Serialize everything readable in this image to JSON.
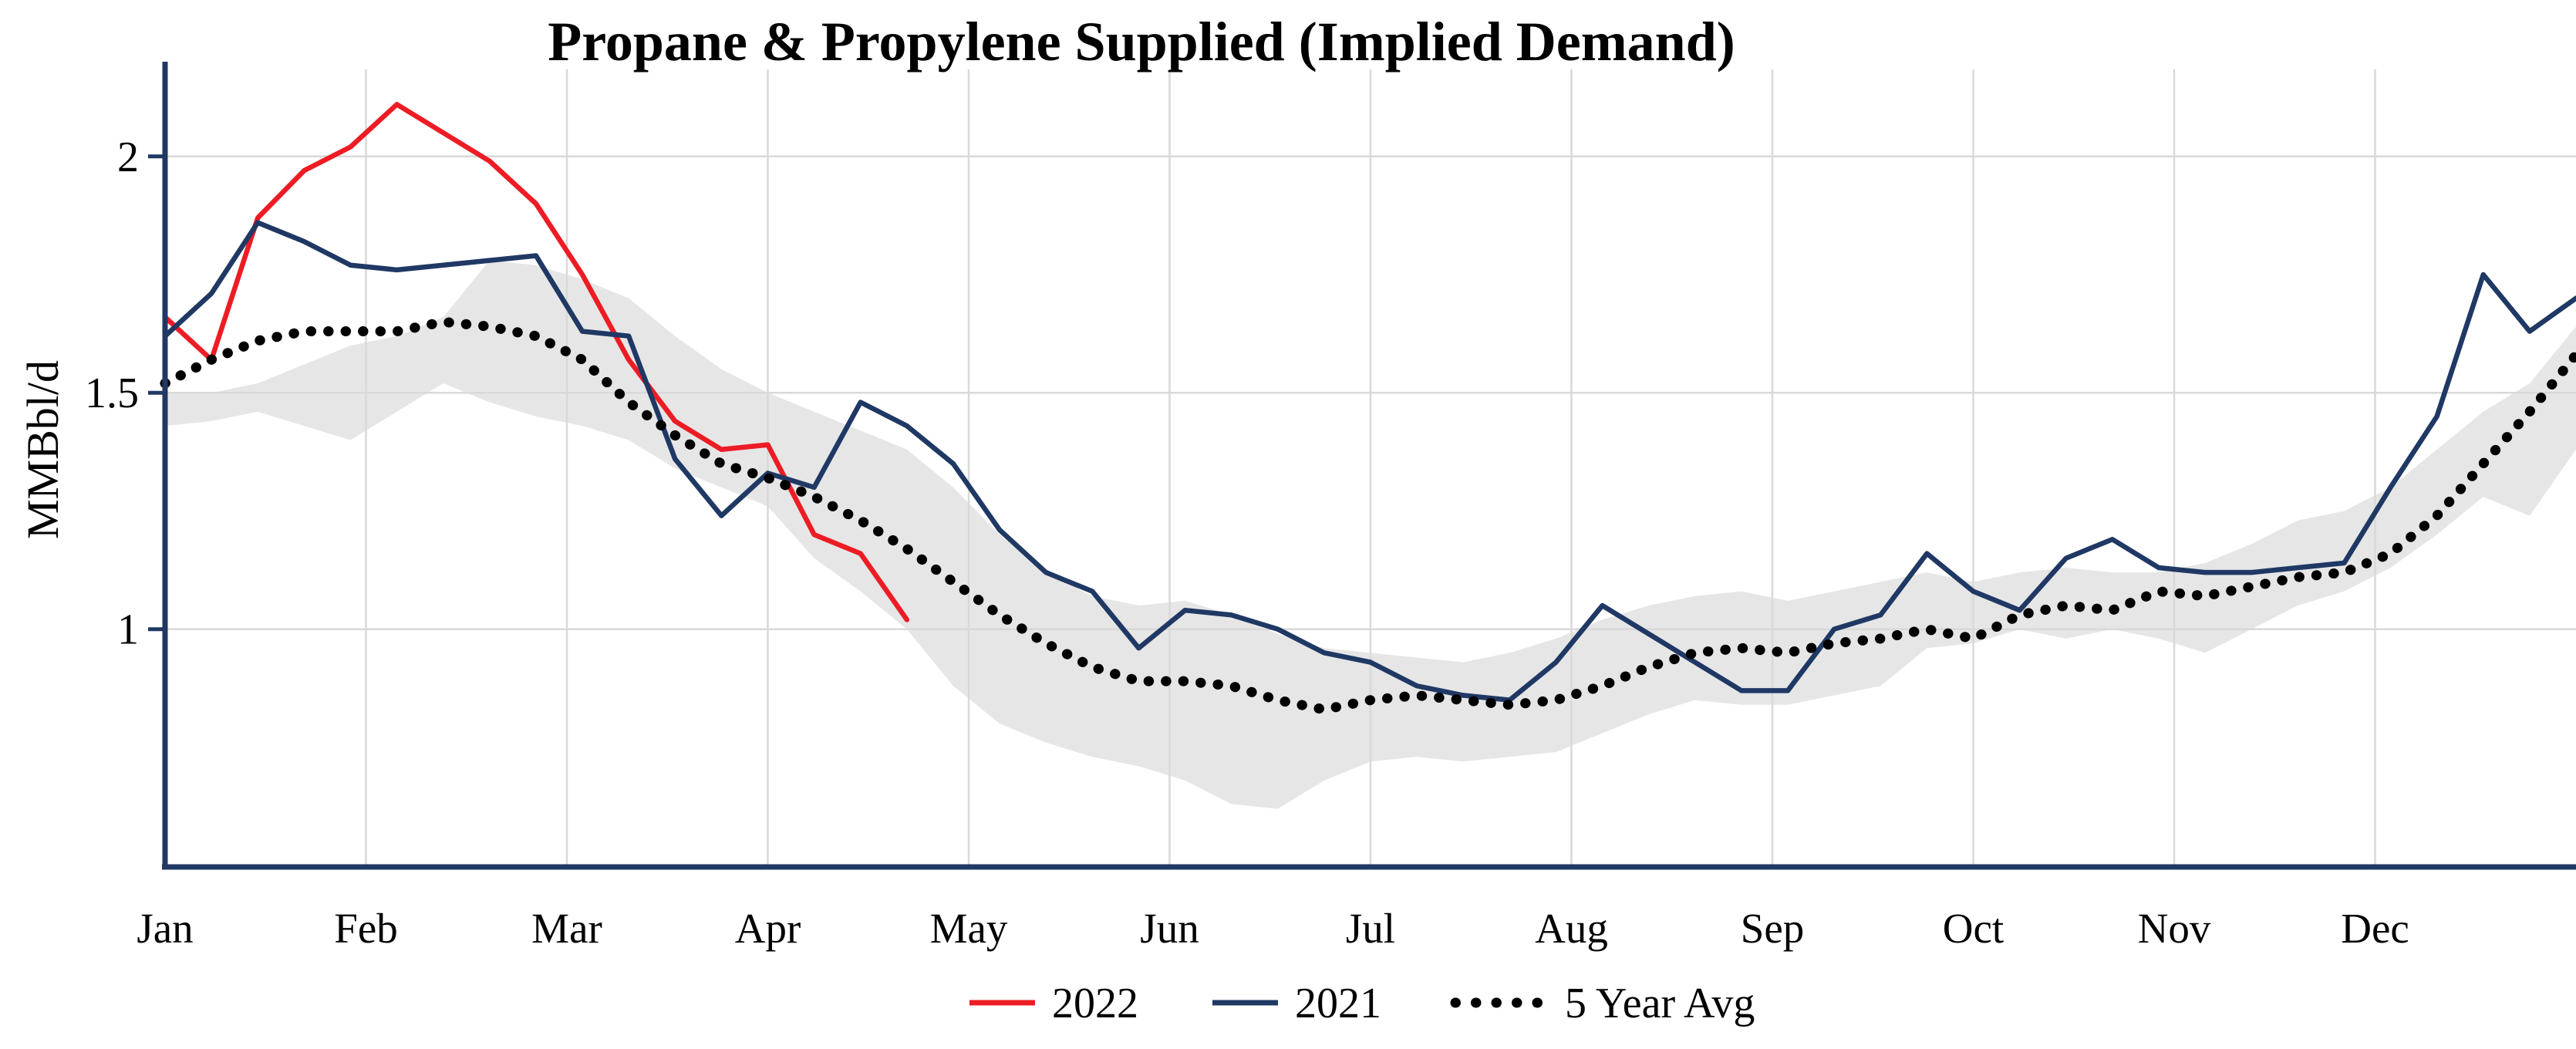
{
  "title": "Propane & Propylene Supplied (Implied Demand)",
  "y_axis": {
    "label": "MMBbl/d",
    "ticks": [
      "1",
      "1.5",
      "2"
    ],
    "tick_values": [
      1,
      1.5,
      2
    ]
  },
  "x_axis": {
    "months": [
      "Jan",
      "Feb",
      "Mar",
      "Apr",
      "May",
      "Jun",
      "Jul",
      "Aug",
      "Sep",
      "Oct",
      "Nov",
      "Dec"
    ]
  },
  "legend": [
    {
      "label": "2022",
      "color": "#ed1c24",
      "style": "solid"
    },
    {
      "label": "2021",
      "color": "#1f3864",
      "style": "solid"
    },
    {
      "label": "5 Year Avg",
      "color": "#000000",
      "style": "dotted"
    }
  ],
  "colors": {
    "axis": "#1f3864",
    "gridline": "#d9d9d9",
    "band": "#e6e6e6",
    "red": "#ed1c24",
    "navy": "#1f3864",
    "black": "#000000",
    "background": "#ffffff"
  },
  "chart_data": {
    "type": "line",
    "title": "Propane & Propylene Supplied (Implied Demand)",
    "xlabel": "",
    "ylabel": "MMBbl/d",
    "ylim": [
      0.5,
      2.2
    ],
    "x_description": "weekly values, index 0 = first week of Jan through index 52 at right edge (late Dec)",
    "x_months": [
      "Jan",
      "Feb",
      "Mar",
      "Apr",
      "May",
      "Jun",
      "Jul",
      "Aug",
      "Sep",
      "Oct",
      "Nov",
      "Dec"
    ],
    "grid": true,
    "legend_position": "bottom-center",
    "series": [
      {
        "name": "2022",
        "color": "#ed1c24",
        "style": "solid",
        "values": [
          1.66,
          1.57,
          1.87,
          1.97,
          2.02,
          2.11,
          2.05,
          1.99,
          1.9,
          1.75,
          1.57,
          1.44,
          1.38,
          1.39,
          1.2,
          1.16,
          1.02
        ]
      },
      {
        "name": "2021",
        "color": "#1f3864",
        "style": "solid",
        "values": [
          1.62,
          1.71,
          1.86,
          1.82,
          1.77,
          1.76,
          1.77,
          1.78,
          1.79,
          1.63,
          1.62,
          1.36,
          1.24,
          1.33,
          1.3,
          1.48,
          1.43,
          1.35,
          1.21,
          1.12,
          1.08,
          0.96,
          1.04,
          1.03,
          1.0,
          0.95,
          0.93,
          0.88,
          0.86,
          0.85,
          0.93,
          1.05,
          0.99,
          0.93,
          0.87,
          0.87,
          1.0,
          1.03,
          1.16,
          1.08,
          1.04,
          1.15,
          1.19,
          1.13,
          1.12,
          1.12,
          1.13,
          1.14,
          1.3,
          1.45,
          1.75,
          1.63,
          1.7
        ]
      },
      {
        "name": "5 Year Avg",
        "color": "#000000",
        "style": "dotted",
        "values": [
          1.52,
          1.57,
          1.61,
          1.63,
          1.63,
          1.63,
          1.65,
          1.64,
          1.62,
          1.57,
          1.48,
          1.41,
          1.35,
          1.32,
          1.28,
          1.23,
          1.17,
          1.1,
          1.03,
          0.97,
          0.92,
          0.89,
          0.89,
          0.88,
          0.85,
          0.83,
          0.85,
          0.86,
          0.85,
          0.84,
          0.85,
          0.88,
          0.92,
          0.95,
          0.96,
          0.95,
          0.97,
          0.98,
          1.0,
          0.98,
          1.03,
          1.05,
          1.04,
          1.08,
          1.07,
          1.09,
          1.11,
          1.12,
          1.16,
          1.24,
          1.35,
          1.46,
          1.58
        ]
      }
    ],
    "band": {
      "name": "5 Year Range",
      "color": "#e6e6e6",
      "upper": [
        1.5,
        1.5,
        1.52,
        1.56,
        1.6,
        1.62,
        1.66,
        1.78,
        1.77,
        1.74,
        1.7,
        1.62,
        1.55,
        1.5,
        1.46,
        1.42,
        1.38,
        1.3,
        1.2,
        1.12,
        1.07,
        1.05,
        1.06,
        1.03,
        0.99,
        0.96,
        0.95,
        0.94,
        0.93,
        0.95,
        0.98,
        1.02,
        1.05,
        1.07,
        1.08,
        1.06,
        1.08,
        1.1,
        1.12,
        1.1,
        1.12,
        1.13,
        1.12,
        1.12,
        1.14,
        1.18,
        1.23,
        1.25,
        1.3,
        1.38,
        1.46,
        1.52,
        1.64
      ],
      "lower": [
        1.43,
        1.44,
        1.46,
        1.43,
        1.4,
        1.46,
        1.52,
        1.48,
        1.45,
        1.43,
        1.4,
        1.34,
        1.3,
        1.26,
        1.15,
        1.08,
        1.0,
        0.88,
        0.8,
        0.76,
        0.73,
        0.71,
        0.68,
        0.63,
        0.62,
        0.68,
        0.72,
        0.73,
        0.72,
        0.73,
        0.74,
        0.78,
        0.82,
        0.85,
        0.84,
        0.84,
        0.86,
        0.88,
        0.96,
        0.97,
        1.0,
        0.98,
        1.0,
        0.98,
        0.95,
        1.0,
        1.05,
        1.08,
        1.13,
        1.2,
        1.28,
        1.24,
        1.38
      ]
    }
  }
}
